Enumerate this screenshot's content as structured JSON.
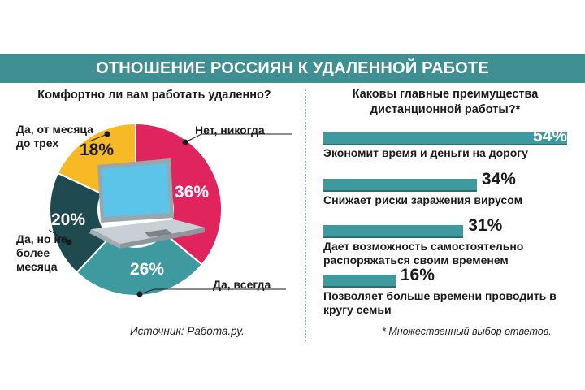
{
  "title": "ОТНОШЕНИЕ РОССИЯН К УДАЛЕННОЙ РАБОТЕ",
  "source": "Источник: Работа.ру.",
  "footnote": "* Множественный выбор ответов.",
  "icon": "laptop-icon",
  "chart_data": [
    {
      "type": "pie",
      "title": "Комфортно ли вам работать удаленно?",
      "value_unit": "%",
      "slices": [
        {
          "label": "Нет, никогда",
          "value": 36,
          "display": "36%",
          "color": "#e0245e"
        },
        {
          "label": "Да, всегда",
          "value": 26,
          "display": "26%",
          "color": "#3f9a9f"
        },
        {
          "label": "Да, но не более месяца",
          "value": 20,
          "display": "20%",
          "color": "#1f4a50"
        },
        {
          "label": "Да, от месяца до трех",
          "value": 18,
          "display": "18%",
          "color": "#f7b926"
        }
      ]
    },
    {
      "type": "bar",
      "orientation": "horizontal",
      "title": "Каковы главные преимущества дистанционной работы?*",
      "xlim": [
        0,
        54
      ],
      "color": "#3f9a9f",
      "categories": [
        "Экономит время и деньги на дорогу",
        "Снижает риски заражения вирусом",
        "Дает возможность самостоятельно распоряжаться своим временем",
        "Позволяет больше времени проводить в кругу семьи"
      ],
      "values": [
        54,
        34,
        31,
        16
      ],
      "value_labels": [
        "54%",
        "34%",
        "31%",
        "16%"
      ]
    }
  ]
}
